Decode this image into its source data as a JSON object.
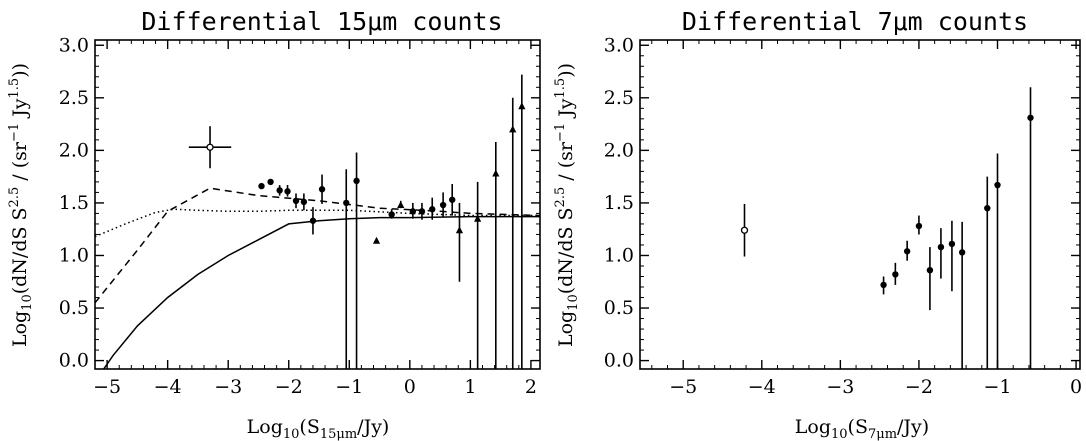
{
  "chart_data": [
    {
      "type": "line",
      "title": "Differential 15μm counts",
      "xlabel": "Log10(S15μm/Jy)",
      "ylabel": "Log10(dN/dS S2.5 / (sr−1 Jy1.5))",
      "xlim": [
        -5.2,
        2.15
      ],
      "ylim": [
        -0.08,
        3.05
      ],
      "xticks": [
        -5,
        -4,
        -3,
        -2,
        -1,
        0,
        1,
        2
      ],
      "yticks": [
        0.0,
        0.5,
        1.0,
        1.5,
        2.0,
        2.5,
        3.0
      ],
      "xtick_labels": [
        "−5",
        "−4",
        "−3",
        "−2",
        "−1",
        "0",
        "1",
        "2"
      ],
      "ytick_labels": [
        "0.0",
        "0.5",
        "1.0",
        "1.5",
        "2.0",
        "2.5",
        "3.0"
      ],
      "series": [
        {
          "style": "solid",
          "x": [
            -5.2,
            -4.9,
            -4.5,
            -4.0,
            -3.5,
            -3.0,
            -2.5,
            -2.0,
            -1.5,
            -1.0,
            -0.5,
            0.0,
            1.0,
            2.15
          ],
          "y": [
            -0.2,
            0.05,
            0.33,
            0.6,
            0.82,
            1.0,
            1.15,
            1.3,
            1.33,
            1.35,
            1.36,
            1.36,
            1.37,
            1.37
          ]
        },
        {
          "style": "dashed",
          "x": [
            -5.2,
            -4.5,
            -4.0,
            -3.3,
            -2.5,
            -1.5,
            -0.5,
            0.5,
            1.0,
            2.15
          ],
          "y": [
            0.55,
            1.05,
            1.42,
            1.64,
            1.57,
            1.52,
            1.45,
            1.42,
            1.4,
            1.38
          ]
        },
        {
          "style": "dotted",
          "x": [
            -5.2,
            -4.7,
            -4.2,
            -3.9,
            -3.5,
            -3.0,
            -2.5,
            -2.0,
            -1.5,
            -1.0,
            0.0,
            1.0,
            2.15
          ],
          "y": [
            1.18,
            1.3,
            1.41,
            1.44,
            1.43,
            1.42,
            1.42,
            1.43,
            1.43,
            1.43,
            1.4,
            1.38,
            1.38
          ]
        }
      ],
      "points_circle": [
        {
          "x": -2.45,
          "y": 1.66,
          "lo": 1.66,
          "hi": 1.66
        },
        {
          "x": -2.3,
          "y": 1.7,
          "lo": 1.7,
          "hi": 1.7
        },
        {
          "x": -2.15,
          "y": 1.62,
          "lo": 1.57,
          "hi": 1.67
        },
        {
          "x": -2.02,
          "y": 1.61,
          "lo": 1.56,
          "hi": 1.67
        },
        {
          "x": -1.88,
          "y": 1.52,
          "lo": 1.45,
          "hi": 1.59
        },
        {
          "x": -1.75,
          "y": 1.51,
          "lo": 1.43,
          "hi": 1.59
        },
        {
          "x": -1.6,
          "y": 1.33,
          "lo": 1.2,
          "hi": 1.46
        },
        {
          "x": -1.45,
          "y": 1.63,
          "lo": 1.49,
          "hi": 1.77
        },
        {
          "x": -1.05,
          "y": 1.5,
          "lo": -0.1,
          "hi": 1.82
        },
        {
          "x": -0.88,
          "y": 1.71,
          "lo": -0.1,
          "hi": 1.98
        },
        {
          "x": -0.3,
          "y": 1.39,
          "lo": 1.35,
          "hi": 1.44
        },
        {
          "x": 0.05,
          "y": 1.42,
          "lo": 1.35,
          "hi": 1.5
        },
        {
          "x": 0.2,
          "y": 1.42,
          "lo": 1.34,
          "hi": 1.5
        },
        {
          "x": 0.37,
          "y": 1.44,
          "lo": 1.34,
          "hi": 1.55
        },
        {
          "x": 0.55,
          "y": 1.48,
          "lo": 1.37,
          "hi": 1.6
        },
        {
          "x": 0.7,
          "y": 1.53,
          "lo": 1.38,
          "hi": 1.68
        }
      ],
      "points_triangle": [
        {
          "x": -0.55,
          "y": 1.14,
          "lo": 1.14,
          "hi": 1.14
        },
        {
          "x": -0.15,
          "y": 1.48,
          "lo": 1.45,
          "hi": 1.52
        },
        {
          "x": 0.82,
          "y": 1.24,
          "lo": 0.75,
          "hi": 1.5
        },
        {
          "x": 1.12,
          "y": 1.35,
          "lo": -0.1,
          "hi": 1.7
        },
        {
          "x": 1.42,
          "y": 1.78,
          "lo": -0.1,
          "hi": 2.08
        },
        {
          "x": 1.7,
          "y": 2.2,
          "lo": -0.1,
          "hi": 2.5
        },
        {
          "x": 1.85,
          "y": 2.42,
          "lo": -0.1,
          "hi": 2.72
        }
      ],
      "cross_marker": {
        "x": -3.3,
        "y": 2.03,
        "xerr": 0.35,
        "yerr": 0.2
      }
    },
    {
      "type": "scatter",
      "title": "Differential 7μm counts",
      "xlabel": "Log10(S7μm/Jy)",
      "ylabel": "Log10(dN/dS S2.5 / (sr−1 Jy1.5))",
      "xlim": [
        -5.55,
        0.05
      ],
      "ylim": [
        -0.08,
        3.05
      ],
      "xticks": [
        -5,
        -4,
        -3,
        -2,
        -1,
        0
      ],
      "yticks": [
        0.0,
        0.5,
        1.0,
        1.5,
        2.0,
        2.5,
        3.0
      ],
      "xtick_labels": [
        "−5",
        "−4",
        "−3",
        "−2",
        "−1",
        "0"
      ],
      "ytick_labels": [
        "0.0",
        "0.5",
        "1.0",
        "1.5",
        "2.0",
        "2.5",
        "3.0"
      ],
      "points_circle": [
        {
          "x": -2.45,
          "y": 0.72,
          "lo": 0.63,
          "hi": 0.8
        },
        {
          "x": -2.3,
          "y": 0.82,
          "lo": 0.72,
          "hi": 0.93
        },
        {
          "x": -2.15,
          "y": 1.04,
          "lo": 0.95,
          "hi": 1.14
        },
        {
          "x": -2.0,
          "y": 1.28,
          "lo": 1.2,
          "hi": 1.38
        },
        {
          "x": -1.86,
          "y": 0.86,
          "lo": 0.48,
          "hi": 1.08
        },
        {
          "x": -1.72,
          "y": 1.08,
          "lo": 0.78,
          "hi": 1.26
        },
        {
          "x": -1.58,
          "y": 1.11,
          "lo": 0.66,
          "hi": 1.33
        },
        {
          "x": -1.45,
          "y": 1.03,
          "lo": -0.1,
          "hi": 1.32
        },
        {
          "x": -1.13,
          "y": 1.45,
          "lo": -0.1,
          "hi": 1.75
        },
        {
          "x": -1.0,
          "y": 1.67,
          "lo": -0.1,
          "hi": 1.97
        },
        {
          "x": -0.58,
          "y": 2.31,
          "lo": -0.1,
          "hi": 2.6
        }
      ],
      "points_triangle": [],
      "cross_marker": {
        "x": -4.22,
        "y": 1.24,
        "xerr": 0.0,
        "yerr": 0.25
      }
    }
  ]
}
